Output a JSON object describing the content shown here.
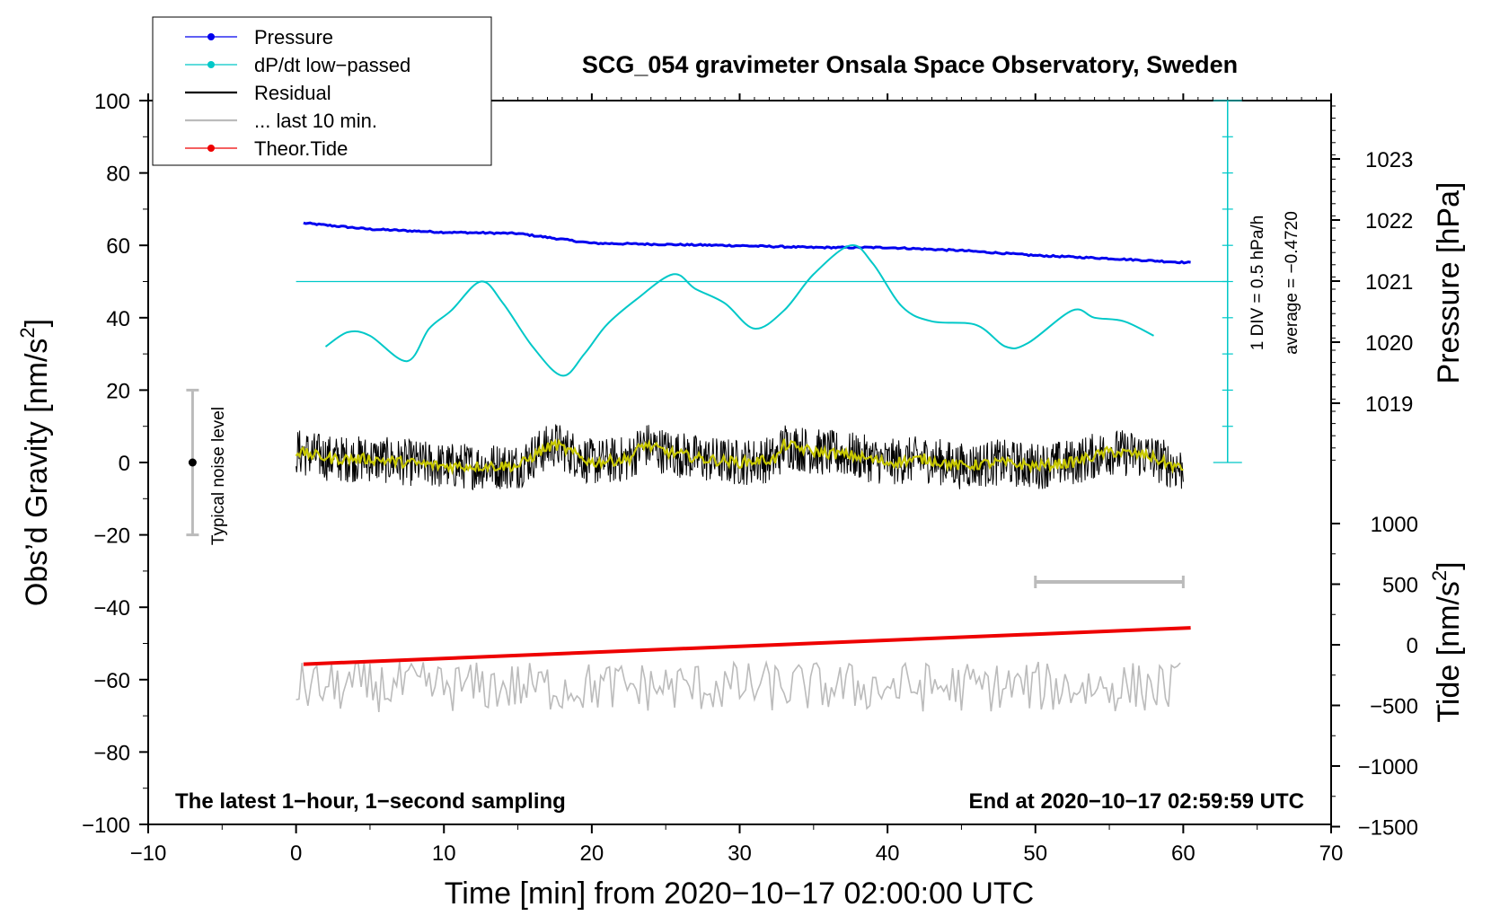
{
  "chart_data": {
    "type": "line",
    "title": "SCG_054 gravimeter Onsala Space Observatory, Sweden",
    "xlabel": "Time [min] from 2020−10−17 02:00:00 UTC",
    "ylabel_left": "Obs’d Gravity [nm/s²]",
    "ylabel_left_main": "Obs’d Gravity [nm/s",
    "ylabel_left_exp": "2",
    "ylabel_left_end": "]",
    "ylabel_right_top": "Pressure [hPa]",
    "ylabel_right_bottom": "Tide [nm/s²]",
    "ylabel_right_bottom_main": "Tide [nm/s",
    "ylabel_right_bottom_exp": "2",
    "ylabel_right_bottom_end": "]",
    "xlim": [
      -10,
      70
    ],
    "ylim": [
      -100,
      100
    ],
    "x_ticks": [
      "−10",
      "0",
      "10",
      "20",
      "30",
      "40",
      "50",
      "60",
      "70"
    ],
    "y_ticks": [
      "100",
      "80",
      "60",
      "40",
      "20",
      "0",
      "−20",
      "−40",
      "−60",
      "−80",
      "−100"
    ],
    "pressure_ticks": [
      "1023",
      "1022",
      "1021",
      "1020",
      "1019"
    ],
    "pressure_tick_values": [
      1023,
      1022,
      1021,
      1020,
      1019
    ],
    "tide_ticks": [
      "1000",
      "500",
      "0",
      "−500",
      "−1000",
      "−1500"
    ],
    "tide_tick_values": [
      1000,
      500,
      0,
      -500,
      -1000,
      -1500
    ],
    "legend": [
      {
        "label": "Pressure",
        "color": "#0000ee",
        "marker": true
      },
      {
        "label": "dP/dt low−passed",
        "color": "#00c8c8",
        "marker": true
      },
      {
        "label": "Residual",
        "color": "#000000",
        "marker": false
      },
      {
        "label": "... last 10 min.",
        "color": "#bbbbbb",
        "marker": false
      },
      {
        "label": "Theor.Tide",
        "color": "#ee0000",
        "marker": true
      }
    ],
    "annotations": {
      "bottom_left": "The latest 1−hour, 1−second sampling",
      "bottom_right": "End at 2020−10−17 02:59:59 UTC",
      "scale_div": "1 DIV = 0.5 hPa/h",
      "average": "average = −0.4720",
      "noise": "Typical noise level"
    },
    "noise_bar": {
      "x": -7,
      "center": 0,
      "half_range": 20
    },
    "last10_bar": {
      "x_start": 50,
      "x_end": 60,
      "y": -33
    },
    "dpdt_zero_level": 50,
    "dpdt_scale_x": 63,
    "dpdt_scale_range": [
      0,
      100
    ],
    "pressure_series": {
      "name": "Pressure",
      "x": [
        0.5,
        5,
        10,
        15,
        20,
        25,
        30,
        35,
        40,
        45,
        50,
        55,
        60.5
      ],
      "values": [
        1021.95,
        1021.85,
        1021.8,
        1021.78,
        1021.62,
        1021.6,
        1021.58,
        1021.55,
        1021.55,
        1021.5,
        1021.42,
        1021.37,
        1021.3
      ]
    },
    "dpdt_series": {
      "name": "dP/dt low-passed",
      "x": [
        2,
        3.5,
        5,
        7.5,
        9,
        10.5,
        12.5,
        14,
        16,
        18,
        19.5,
        21,
        23,
        25.5,
        27,
        29,
        31,
        33,
        35,
        37.5,
        39,
        41,
        43,
        46,
        48,
        49.5,
        52.5,
        54,
        56,
        58
      ],
      "values": [
        32,
        36,
        35,
        28,
        37,
        42,
        50,
        44,
        32,
        24,
        30,
        38,
        45,
        52,
        48,
        44,
        37,
        42,
        52,
        60,
        55,
        43,
        39,
        38,
        32,
        33,
        42,
        40,
        39,
        35
      ]
    },
    "residual_series": {
      "name": "Residual",
      "x": [
        0,
        2.5,
        5,
        7.5,
        10,
        12.5,
        15,
        16.5,
        17.5,
        20,
        22.5,
        23.5,
        25,
        27.5,
        30,
        32.5,
        33,
        35,
        37.5,
        40,
        42.5,
        45,
        47.5,
        50,
        52.5,
        55,
        57.5,
        60
      ],
      "values": [
        3,
        1,
        1,
        0,
        -1,
        -1,
        -1,
        3,
        5,
        0,
        1,
        5,
        3,
        1,
        0,
        1,
        5,
        3,
        2,
        0,
        1,
        -1,
        0,
        -1,
        0,
        3,
        2,
        -2
      ]
    },
    "last10_series": {
      "name": "... last 10 min.",
      "x": [
        0,
        60
      ],
      "values": [
        -62,
        -62
      ]
    },
    "tide_series": {
      "name": "Theor.Tide",
      "x": [
        0.5,
        60.5
      ],
      "values": [
        -160,
        140
      ]
    }
  }
}
